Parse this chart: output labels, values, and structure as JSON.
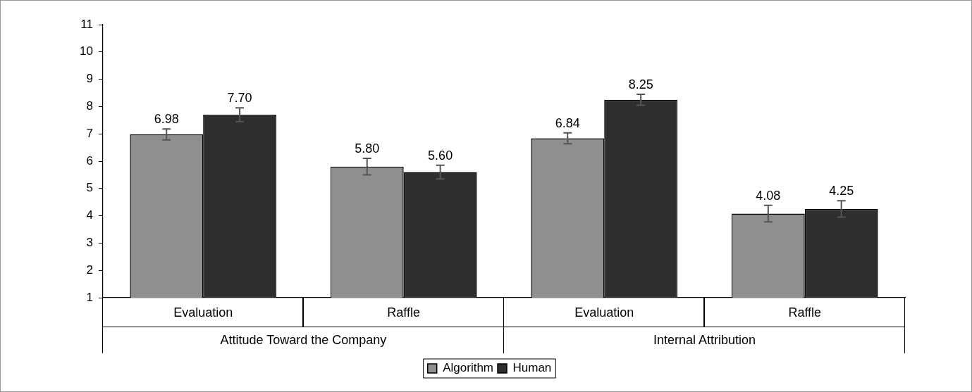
{
  "chart_data": {
    "type": "bar",
    "categories": [
      "Evaluation",
      "Raffle",
      "Evaluation",
      "Raffle"
    ],
    "annotations": [
      "Attitude Toward the Company",
      "Internal Attribution"
    ],
    "series": [
      {
        "name": "Algorithm",
        "color": "#8f8f8f",
        "values": [
          6.98,
          5.8,
          6.84,
          4.08
        ],
        "errors": [
          0.2,
          0.3,
          0.2,
          0.3
        ],
        "value_labels": [
          "6.98",
          "5.80",
          "6.84",
          "4.08"
        ]
      },
      {
        "name": "Human",
        "color": "#2e2e2e",
        "values": [
          7.7,
          5.6,
          8.25,
          4.25
        ],
        "errors": [
          0.25,
          0.25,
          0.2,
          0.3
        ],
        "value_labels": [
          "7.70",
          "5.60",
          "8.25",
          "4.25"
        ]
      }
    ],
    "ylim": [
      1,
      11
    ],
    "yticks": [
      1,
      2,
      3,
      4,
      5,
      6,
      7,
      8,
      9,
      10,
      11
    ],
    "grid": false,
    "legend": "bottom"
  }
}
